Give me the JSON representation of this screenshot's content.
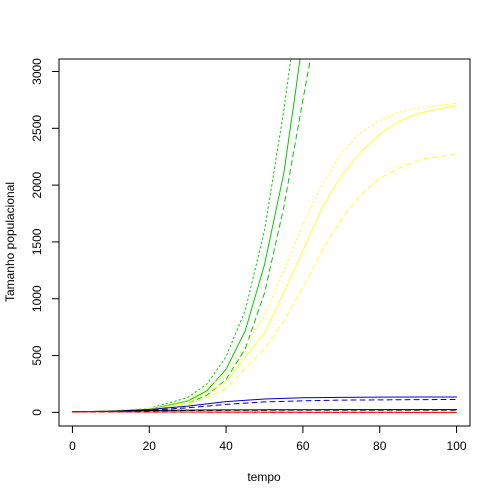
{
  "chart_data": {
    "type": "line",
    "title": "",
    "xlabel": "tempo",
    "ylabel": "Tamanho populacional",
    "xlim": [
      -3.5,
      103.5
    ],
    "ylim": [
      -120,
      3110
    ],
    "x_ticks": [
      0,
      20,
      40,
      60,
      80,
      100
    ],
    "y_ticks": [
      0,
      500,
      1000,
      1500,
      2000,
      2500,
      3000
    ],
    "grid": false,
    "legend": "none",
    "series": [
      {
        "color": "#00cc00",
        "dash": "solid",
        "x": [
          0,
          10,
          20,
          30,
          35,
          40,
          45,
          50,
          55,
          58,
          60,
          62
        ],
        "y": [
          5,
          10,
          28,
          100,
          190,
          380,
          720,
          1300,
          2100,
          2800,
          3300,
          3800
        ]
      },
      {
        "color": "#00cc00",
        "dash": "dashed",
        "x": [
          0,
          10,
          20,
          30,
          35,
          40,
          45,
          50,
          55,
          60,
          63,
          65
        ],
        "y": [
          5,
          8,
          22,
          80,
          150,
          290,
          560,
          1050,
          1800,
          2750,
          3300,
          3700
        ]
      },
      {
        "color": "#00cc00",
        "dash": "dotted",
        "x": [
          0,
          10,
          20,
          30,
          35,
          40,
          45,
          50,
          55,
          57,
          59
        ],
        "y": [
          5,
          12,
          35,
          130,
          250,
          490,
          900,
          1600,
          2650,
          3150,
          3700
        ]
      },
      {
        "color": "#ffff33",
        "dash": "solid",
        "x": [
          0,
          10,
          20,
          30,
          40,
          50,
          55,
          60,
          65,
          70,
          75,
          80,
          85,
          90,
          95,
          100
        ],
        "y": [
          5,
          10,
          25,
          80,
          270,
          700,
          1050,
          1420,
          1800,
          2080,
          2290,
          2450,
          2560,
          2630,
          2670,
          2700
        ]
      },
      {
        "color": "#ffff33",
        "dash": "dotted",
        "x": [
          0,
          10,
          20,
          30,
          40,
          50,
          55,
          60,
          65,
          70,
          75,
          80,
          85,
          90,
          95,
          100
        ],
        "y": [
          5,
          12,
          32,
          105,
          340,
          850,
          1250,
          1650,
          2000,
          2280,
          2460,
          2570,
          2640,
          2680,
          2700,
          2720
        ]
      },
      {
        "color": "#ffff33",
        "dash": "dashed",
        "x": [
          0,
          10,
          20,
          30,
          40,
          50,
          55,
          60,
          65,
          70,
          75,
          80,
          85,
          90,
          95,
          100
        ],
        "y": [
          5,
          8,
          20,
          60,
          210,
          560,
          800,
          1100,
          1420,
          1700,
          1910,
          2060,
          2150,
          2220,
          2250,
          2270
        ]
      },
      {
        "color": "#0000cc",
        "dash": "solid",
        "x": [
          0,
          10,
          20,
          30,
          40,
          50,
          60,
          70,
          80,
          90,
          100
        ],
        "y": [
          5,
          10,
          25,
          55,
          95,
          118,
          128,
          132,
          134,
          135,
          135
        ]
      },
      {
        "color": "#0000cc",
        "dash": "dashed",
        "x": [
          0,
          10,
          20,
          30,
          40,
          50,
          60,
          70,
          80,
          90,
          100
        ],
        "y": [
          5,
          8,
          18,
          40,
          70,
          92,
          102,
          108,
          110,
          112,
          113
        ]
      },
      {
        "color": "#000000",
        "dash": "solid",
        "x": [
          0,
          10,
          20,
          30,
          40,
          50,
          60,
          70,
          80,
          90,
          100
        ],
        "y": [
          5,
          10,
          16,
          20,
          22,
          23,
          23,
          24,
          24,
          24,
          24
        ]
      },
      {
        "color": "#000000",
        "dash": "dashed",
        "x": [
          0,
          10,
          20,
          30,
          40,
          50,
          60,
          70,
          80,
          90,
          100
        ],
        "y": [
          5,
          9,
          13,
          16,
          18,
          19,
          20,
          20,
          20,
          20,
          20
        ]
      },
      {
        "color": "#ff0000",
        "dash": "solid",
        "x": [
          0,
          10,
          20,
          30,
          40,
          50,
          60,
          70,
          80,
          90,
          100
        ],
        "y": [
          5,
          5,
          4,
          3,
          2,
          2,
          1,
          1,
          1,
          0,
          0
        ]
      },
      {
        "color": "#ff0000",
        "dash": "dashed",
        "x": [
          0,
          10,
          20,
          30,
          40,
          50,
          60,
          70,
          80,
          90,
          100
        ],
        "y": [
          4,
          3,
          2,
          2,
          1,
          1,
          0,
          0,
          0,
          0,
          0
        ]
      }
    ]
  }
}
